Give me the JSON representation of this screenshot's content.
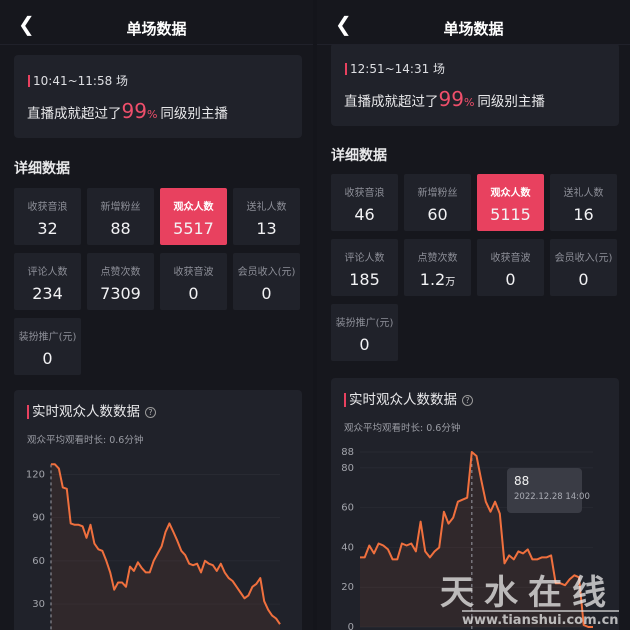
{
  "panels": [
    {
      "header": {
        "title": "单场数据"
      },
      "summary": {
        "session": "10:41~11:58 场",
        "prefix": "直播成就超过了",
        "pct": "99",
        "pct_sign": "%",
        "suffix": "同级别主播"
      },
      "section_title": "详细数据",
      "metrics": [
        {
          "label": "收获音浪",
          "value": "32"
        },
        {
          "label": "新增粉丝",
          "value": "88"
        },
        {
          "label": "观众人数",
          "value": "5517",
          "active": true
        },
        {
          "label": "送礼人数",
          "value": "13"
        },
        {
          "label": "评论人数",
          "value": "234"
        },
        {
          "label": "点赞次数",
          "value": "7309"
        },
        {
          "label": "收获音波",
          "value": "0"
        },
        {
          "label": "会员收入(元)",
          "value": "0"
        },
        {
          "label": "装扮推广(元)",
          "value": "0"
        }
      ],
      "chart": {
        "title": "实时观众人数数据",
        "subtitle": "观众平均观看时长: 0.6分钟"
      }
    },
    {
      "header": {
        "title": "单场数据"
      },
      "summary": {
        "session": "12:51~14:31 场",
        "prefix": "直播成就超过了",
        "pct": "99",
        "pct_sign": "%",
        "suffix": "同级别主播"
      },
      "section_title": "详细数据",
      "metrics": [
        {
          "label": "收获音浪",
          "value": "46"
        },
        {
          "label": "新增粉丝",
          "value": "60"
        },
        {
          "label": "观众人数",
          "value": "5115",
          "active": true
        },
        {
          "label": "送礼人数",
          "value": "16"
        },
        {
          "label": "评论人数",
          "value": "185"
        },
        {
          "label": "点赞次数",
          "value": "1.2",
          "unit": "万"
        },
        {
          "label": "收获音波",
          "value": "0"
        },
        {
          "label": "会员收入(元)",
          "value": "0"
        },
        {
          "label": "装扮推广(元)",
          "value": "0"
        }
      ],
      "chart": {
        "title": "实时观众人数数据",
        "subtitle": "观众平均观看时长: 0.6分钟",
        "tooltip": {
          "value": "88",
          "time": "2022.12.28 14:00"
        }
      }
    }
  ],
  "colors": {
    "accent": "#e8415f",
    "line": "#f0703e",
    "card": "#20222a",
    "background": "#16171d"
  },
  "icons": {
    "back": "chevron-left-icon",
    "help": "question-circle-icon"
  },
  "watermark": {
    "text": "天水在线",
    "url": "www.tianshui.com.cn"
  },
  "chart_data": [
    {
      "type": "line",
      "yticks": [
        30,
        60,
        90,
        120
      ],
      "ylim": [
        12,
        130
      ],
      "values": [
        127,
        127,
        124,
        111,
        110,
        86,
        85,
        85,
        84,
        76,
        85,
        72,
        68,
        67,
        60,
        52,
        40,
        45,
        45,
        42,
        56,
        53,
        59,
        55,
        52,
        52,
        60,
        65,
        70,
        80,
        86,
        80,
        74,
        67,
        64,
        58,
        57,
        58,
        52,
        60,
        58,
        57,
        53,
        58,
        52,
        48,
        46,
        42,
        38,
        34,
        36,
        42,
        44,
        48,
        32,
        26,
        22,
        20,
        16
      ]
    },
    {
      "type": "line",
      "yticks": [
        0,
        20,
        40,
        60,
        80,
        88
      ],
      "ylim": [
        0,
        88
      ],
      "values": [
        35,
        35,
        41,
        37,
        42,
        41,
        39,
        34,
        34,
        42,
        41,
        42,
        38,
        53,
        38,
        35,
        38,
        40,
        58,
        52,
        55,
        63,
        64,
        65,
        88,
        86,
        74,
        63,
        58,
        63,
        57,
        32,
        36,
        34,
        38,
        37,
        39,
        34,
        34,
        35,
        35,
        36,
        22,
        22,
        21,
        24,
        26,
        25,
        1,
        0,
        0
      ]
    }
  ]
}
